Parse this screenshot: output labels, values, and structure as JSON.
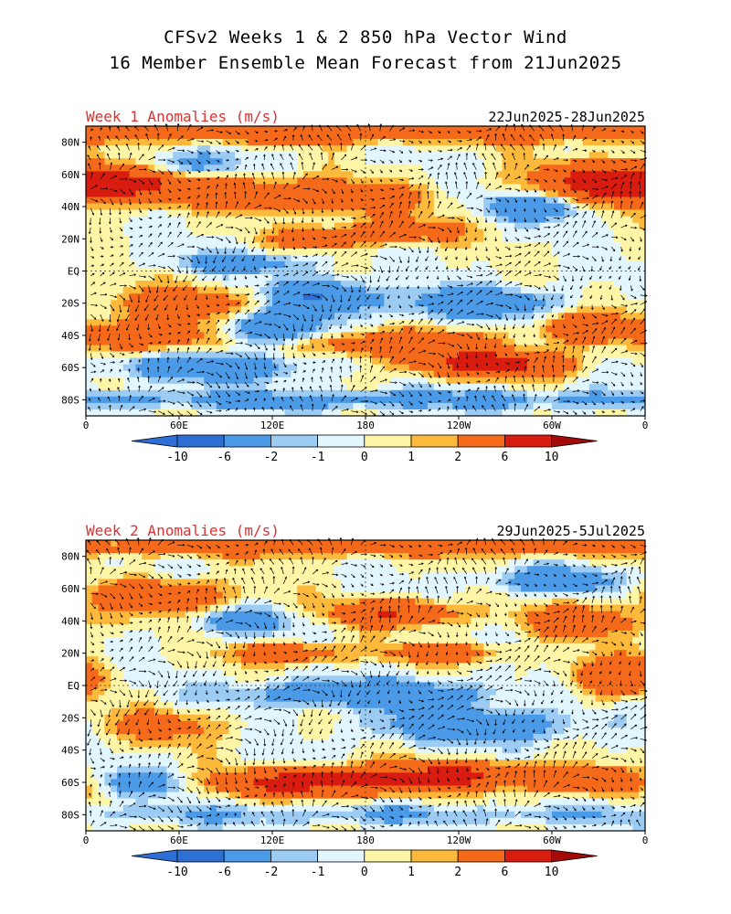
{
  "title_line1": "CFSv2 Weeks 1 & 2 850 hPa Vector Wind",
  "title_line2": "16 Member Ensemble Mean Forecast from 21Jun2025",
  "colors": {
    "neg10": "#2e6fd6",
    "neg6": "#4b9ae8",
    "neg2": "#9ccbf3",
    "neg1": "#e2f6ff",
    "pos0": "#fff5a6",
    "pos1": "#fdb93b",
    "pos2": "#f46a1a",
    "pos6": "#d81c10",
    "pos10": "#a50a0a",
    "title_red": "#e03030"
  },
  "chart_data": [
    {
      "type": "heatmap",
      "title": "Week 1 Anomalies (m/s)",
      "period": "22Jun2025-28Jun2025",
      "y_ticks": [
        "80N",
        "60N",
        "40N",
        "20N",
        "EQ",
        "20S",
        "40S",
        "60S",
        "80S"
      ],
      "x_ticks": [
        "0",
        "60E",
        "120E",
        "180",
        "120W",
        "60W",
        "0"
      ],
      "colorbar_labels": [
        "-10",
        "-6",
        "-2",
        "-1",
        "0",
        "1",
        "2",
        "6",
        "10"
      ],
      "xlim": [
        0,
        360
      ],
      "ylim": [
        -90,
        90
      ],
      "blobs": [
        {
          "lon": 180,
          "lat": 86,
          "w": 360,
          "h": 6,
          "v": 5
        },
        {
          "lon": 20,
          "lat": 55,
          "w": 60,
          "h": 12,
          "v": 6
        },
        {
          "lon": 120,
          "lat": 48,
          "w": 55,
          "h": 10,
          "v": 4
        },
        {
          "lon": 175,
          "lat": 45,
          "w": 40,
          "h": 8,
          "v": 5
        },
        {
          "lon": 340,
          "lat": 55,
          "w": 50,
          "h": 12,
          "v": 6
        },
        {
          "lon": 290,
          "lat": 40,
          "w": 30,
          "h": 8,
          "v": -5
        },
        {
          "lon": 60,
          "lat": 65,
          "w": 40,
          "h": 8,
          "v": -4
        },
        {
          "lon": 200,
          "lat": 25,
          "w": 40,
          "h": 8,
          "v": 4
        },
        {
          "lon": 150,
          "lat": 20,
          "w": 30,
          "h": 6,
          "v": 4
        },
        {
          "lon": 100,
          "lat": 5,
          "w": 40,
          "h": 6,
          "v": -4
        },
        {
          "lon": 60,
          "lat": -20,
          "w": 50,
          "h": 10,
          "v": 4
        },
        {
          "lon": 150,
          "lat": -15,
          "w": 30,
          "h": 10,
          "v": -6
        },
        {
          "lon": 250,
          "lat": -20,
          "w": 60,
          "h": 10,
          "v": -4
        },
        {
          "lon": 40,
          "lat": -40,
          "w": 40,
          "h": 10,
          "v": 5
        },
        {
          "lon": 120,
          "lat": -35,
          "w": 30,
          "h": 10,
          "v": -6
        },
        {
          "lon": 200,
          "lat": -45,
          "w": 60,
          "h": 8,
          "v": 5
        },
        {
          "lon": 260,
          "lat": -58,
          "w": 50,
          "h": 8,
          "v": 8
        },
        {
          "lon": 320,
          "lat": -35,
          "w": 30,
          "h": 10,
          "v": 5
        },
        {
          "lon": 80,
          "lat": -60,
          "w": 60,
          "h": 8,
          "v": -5
        },
        {
          "lon": 180,
          "lat": -80,
          "w": 360,
          "h": 6,
          "v": -3
        }
      ]
    },
    {
      "type": "heatmap",
      "title": "Week 2 Anomalies (m/s)",
      "period": "29Jun2025-5Jul2025",
      "y_ticks": [
        "80N",
        "60N",
        "40N",
        "20N",
        "EQ",
        "20S",
        "40S",
        "60S",
        "80S"
      ],
      "x_ticks": [
        "0",
        "60E",
        "120E",
        "180",
        "120W",
        "60W",
        "0"
      ],
      "colorbar_labels": [
        "-10",
        "-6",
        "-2",
        "-1",
        "0",
        "1",
        "2",
        "6",
        "10"
      ],
      "xlim": [
        0,
        360
      ],
      "ylim": [
        -90,
        90
      ],
      "blobs": [
        {
          "lon": 180,
          "lat": 86,
          "w": 360,
          "h": 6,
          "v": 4
        },
        {
          "lon": 50,
          "lat": 55,
          "w": 45,
          "h": 10,
          "v": 5
        },
        {
          "lon": 200,
          "lat": 45,
          "w": 40,
          "h": 8,
          "v": 6
        },
        {
          "lon": 300,
          "lat": 65,
          "w": 40,
          "h": 8,
          "v": -4
        },
        {
          "lon": 320,
          "lat": 40,
          "w": 40,
          "h": 10,
          "v": 4
        },
        {
          "lon": 100,
          "lat": 40,
          "w": 30,
          "h": 8,
          "v": -4
        },
        {
          "lon": 130,
          "lat": 20,
          "w": 35,
          "h": 6,
          "v": 5
        },
        {
          "lon": 230,
          "lat": 20,
          "w": 40,
          "h": 6,
          "v": 4
        },
        {
          "lon": 340,
          "lat": 5,
          "w": 30,
          "h": 12,
          "v": 5
        },
        {
          "lon": 180,
          "lat": -5,
          "w": 80,
          "h": 8,
          "v": -5
        },
        {
          "lon": 50,
          "lat": -25,
          "w": 40,
          "h": 10,
          "v": 3
        },
        {
          "lon": 250,
          "lat": -25,
          "w": 60,
          "h": 10,
          "v": -5
        },
        {
          "lon": 150,
          "lat": -60,
          "w": 70,
          "h": 8,
          "v": 8
        },
        {
          "lon": 240,
          "lat": -55,
          "w": 60,
          "h": 8,
          "v": 6
        },
        {
          "lon": 30,
          "lat": -60,
          "w": 40,
          "h": 8,
          "v": -4
        },
        {
          "lon": 330,
          "lat": -60,
          "w": 40,
          "h": 8,
          "v": 5
        },
        {
          "lon": 180,
          "lat": -80,
          "w": 360,
          "h": 6,
          "v": -2
        }
      ]
    }
  ]
}
